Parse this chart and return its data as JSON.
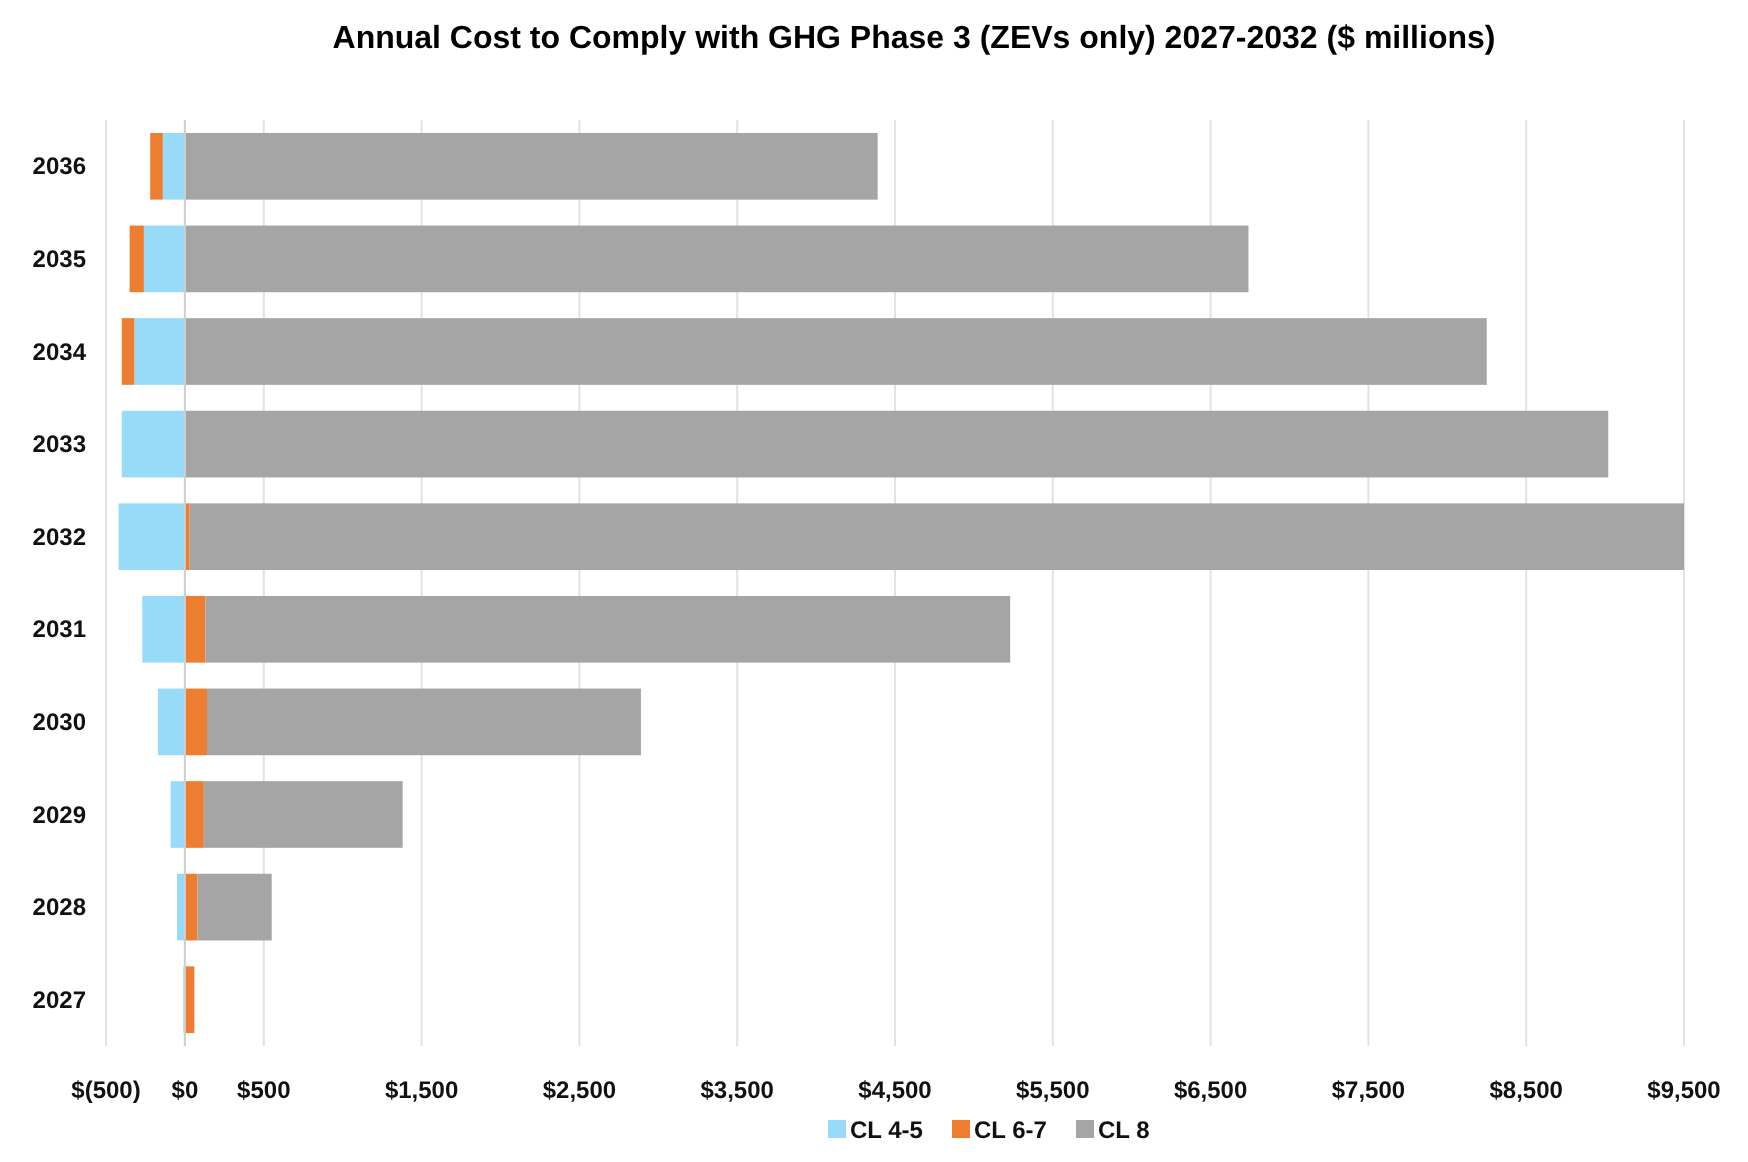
{
  "chart_data": {
    "type": "bar",
    "orientation": "horizontal",
    "stacked": true,
    "title": "Annual Cost to Comply with GHG Phase 3 (ZEVs only) 2027-2032 ($ millions)",
    "categories": [
      "2036",
      "2035",
      "2034",
      "2033",
      "2032",
      "2031",
      "2030",
      "2029",
      "2028",
      "2027"
    ],
    "series": [
      {
        "name": "CL 4-5",
        "color": "#97dbf8",
        "values": [
          -140,
          -260,
          -320,
          -400,
          -420,
          -270,
          -170,
          -90,
          -50,
          -10
        ]
      },
      {
        "name": "CL 6-7",
        "color": "#ed7d31",
        "values": [
          -80,
          -90,
          -80,
          0,
          30,
          130,
          140,
          120,
          80,
          60
        ]
      },
      {
        "name": "CL 8",
        "color": "#a5a5a5",
        "values": [
          4390,
          6740,
          8250,
          9020,
          9470,
          5100,
          2750,
          1260,
          470,
          0
        ]
      }
    ],
    "xlim": [
      -500,
      9500
    ],
    "xticks": [
      {
        "value": -500,
        "label": "$(500)"
      },
      {
        "value": 0,
        "label": "$0"
      },
      {
        "value": 500,
        "label": "$500"
      },
      {
        "value": 1500,
        "label": "$1,500"
      },
      {
        "value": 2500,
        "label": "$2,500"
      },
      {
        "value": 3500,
        "label": "$3,500"
      },
      {
        "value": 4500,
        "label": "$4,500"
      },
      {
        "value": 5500,
        "label": "$5,500"
      },
      {
        "value": 6500,
        "label": "$6,500"
      },
      {
        "value": 7500,
        "label": "$7,500"
      },
      {
        "value": 8500,
        "label": "$8,500"
      },
      {
        "value": 9500,
        "label": "$9,500"
      }
    ],
    "grid": "x",
    "legend": "bottom"
  }
}
